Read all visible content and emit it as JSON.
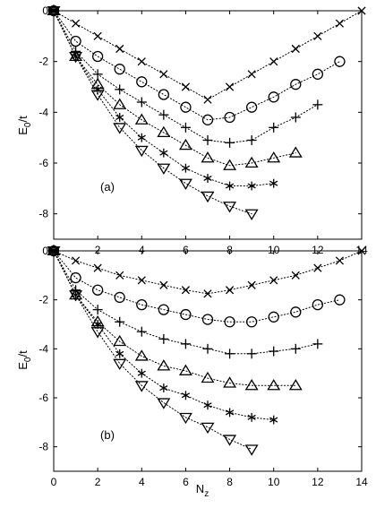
{
  "figure": {
    "xlabel_main": "N",
    "xlabel_sub": "z",
    "ylabel_main": "E",
    "ylabel_sub": "0",
    "ylabel_tail": "/t"
  },
  "chart_data": [
    {
      "type": "scatter",
      "panel_label": "(a)",
      "xlabel": "Nz",
      "ylabel": "E0/t",
      "xlim": [
        0,
        14
      ],
      "ylim": [
        -9,
        0
      ],
      "x_ticks": [
        0,
        2,
        4,
        6,
        8,
        10,
        12,
        14
      ],
      "y_ticks": [
        0,
        -2,
        -4,
        -6,
        -8
      ],
      "x_tick_labels": [
        "0",
        "2",
        "4",
        "6",
        "8",
        "10",
        "12",
        "14"
      ],
      "y_tick_labels": [
        "0",
        "-2",
        "-4",
        "-6",
        "-8"
      ],
      "grid": false,
      "dotted_connecting_lines": true,
      "series": [
        {
          "marker": "x",
          "points": [
            [
              0,
              0
            ],
            [
              1,
              -0.5
            ],
            [
              2,
              -1.0
            ],
            [
              3,
              -1.5
            ],
            [
              4,
              -2.0
            ],
            [
              5,
              -2.5
            ],
            [
              6,
              -3.0
            ],
            [
              7,
              -3.5
            ],
            [
              8,
              -3.0
            ],
            [
              9,
              -2.5
            ],
            [
              10,
              -2.0
            ],
            [
              11,
              -1.5
            ],
            [
              12,
              -1.0
            ],
            [
              13,
              -0.5
            ],
            [
              14,
              0
            ]
          ]
        },
        {
          "marker": "circle",
          "points": [
            [
              0,
              0
            ],
            [
              1,
              -1.2
            ],
            [
              2,
              -1.8
            ],
            [
              3,
              -2.3
            ],
            [
              4,
              -2.8
            ],
            [
              5,
              -3.3
            ],
            [
              6,
              -3.8
            ],
            [
              7,
              -4.3
            ],
            [
              8,
              -4.2
            ],
            [
              9,
              -3.8
            ],
            [
              10,
              -3.4
            ],
            [
              11,
              -2.9
            ],
            [
              12,
              -2.5
            ],
            [
              13,
              -2.0
            ]
          ]
        },
        {
          "marker": "plus",
          "points": [
            [
              0,
              0
            ],
            [
              1,
              -1.6
            ],
            [
              2,
              -2.5
            ],
            [
              3,
              -3.1
            ],
            [
              4,
              -3.6
            ],
            [
              5,
              -4.1
            ],
            [
              6,
              -4.6
            ],
            [
              7,
              -5.1
            ],
            [
              8,
              -5.2
            ],
            [
              9,
              -5.1
            ],
            [
              10,
              -4.6
            ],
            [
              11,
              -4.2
            ],
            [
              12,
              -3.7
            ]
          ]
        },
        {
          "marker": "triangle-up",
          "points": [
            [
              0,
              0
            ],
            [
              1,
              -1.8
            ],
            [
              2,
              -2.9
            ],
            [
              3,
              -3.7
            ],
            [
              4,
              -4.3
            ],
            [
              5,
              -4.8
            ],
            [
              6,
              -5.3
            ],
            [
              7,
              -5.8
            ],
            [
              8,
              -6.1
            ],
            [
              9,
              -6.0
            ],
            [
              10,
              -5.8
            ],
            [
              11,
              -5.6
            ]
          ]
        },
        {
          "marker": "asterisk",
          "points": [
            [
              0,
              0
            ],
            [
              1,
              -1.8
            ],
            [
              2,
              -3.1
            ],
            [
              3,
              -4.2
            ],
            [
              4,
              -5.0
            ],
            [
              5,
              -5.6
            ],
            [
              6,
              -6.2
            ],
            [
              7,
              -6.6
            ],
            [
              8,
              -6.9
            ],
            [
              9,
              -6.9
            ],
            [
              10,
              -6.8
            ]
          ]
        },
        {
          "marker": "triangle-down",
          "points": [
            [
              0,
              0
            ],
            [
              1,
              -1.8
            ],
            [
              2,
              -3.3
            ],
            [
              3,
              -4.6
            ],
            [
              4,
              -5.5
            ],
            [
              5,
              -6.2
            ],
            [
              6,
              -6.8
            ],
            [
              7,
              -7.3
            ],
            [
              8,
              -7.7
            ],
            [
              9,
              -8.0
            ]
          ]
        }
      ]
    },
    {
      "type": "scatter",
      "panel_label": "(b)",
      "xlabel": "Nz",
      "ylabel": "E0/t",
      "xlim": [
        0,
        14
      ],
      "ylim": [
        -9,
        0
      ],
      "x_ticks": [
        0,
        2,
        4,
        6,
        8,
        10,
        12,
        14
      ],
      "y_ticks": [
        0,
        -2,
        -4,
        -6,
        -8
      ],
      "x_tick_labels": [
        "0",
        "2",
        "4",
        "6",
        "8",
        "10",
        "12",
        "14"
      ],
      "y_tick_labels": [
        "0",
        "-2",
        "-4",
        "-6",
        "-8"
      ],
      "grid": false,
      "dotted_connecting_lines": true,
      "series": [
        {
          "marker": "x",
          "points": [
            [
              0,
              0
            ],
            [
              1,
              -0.4
            ],
            [
              2,
              -0.7
            ],
            [
              3,
              -1.0
            ],
            [
              4,
              -1.2
            ],
            [
              5,
              -1.4
            ],
            [
              6,
              -1.6
            ],
            [
              7,
              -1.75
            ],
            [
              8,
              -1.6
            ],
            [
              9,
              -1.4
            ],
            [
              10,
              -1.2
            ],
            [
              11,
              -1.0
            ],
            [
              12,
              -0.7
            ],
            [
              13,
              -0.4
            ],
            [
              14,
              0
            ]
          ]
        },
        {
          "marker": "circle",
          "points": [
            [
              0,
              0
            ],
            [
              1,
              -1.1
            ],
            [
              2,
              -1.6
            ],
            [
              3,
              -1.9
            ],
            [
              4,
              -2.2
            ],
            [
              5,
              -2.4
            ],
            [
              6,
              -2.6
            ],
            [
              7,
              -2.8
            ],
            [
              8,
              -2.9
            ],
            [
              9,
              -2.9
            ],
            [
              10,
              -2.7
            ],
            [
              11,
              -2.5
            ],
            [
              12,
              -2.2
            ],
            [
              13,
              -2.0
            ]
          ]
        },
        {
          "marker": "plus",
          "points": [
            [
              0,
              0
            ],
            [
              1,
              -1.6
            ],
            [
              2,
              -2.4
            ],
            [
              3,
              -2.9
            ],
            [
              4,
              -3.3
            ],
            [
              5,
              -3.6
            ],
            [
              6,
              -3.8
            ],
            [
              7,
              -4.0
            ],
            [
              8,
              -4.2
            ],
            [
              9,
              -4.2
            ],
            [
              10,
              -4.1
            ],
            [
              11,
              -4.0
            ],
            [
              12,
              -3.8
            ]
          ]
        },
        {
          "marker": "triangle-up",
          "points": [
            [
              0,
              0
            ],
            [
              1,
              -1.8
            ],
            [
              2,
              -2.9
            ],
            [
              3,
              -3.7
            ],
            [
              4,
              -4.3
            ],
            [
              5,
              -4.7
            ],
            [
              6,
              -4.9
            ],
            [
              7,
              -5.2
            ],
            [
              8,
              -5.4
            ],
            [
              9,
              -5.5
            ],
            [
              10,
              -5.5
            ],
            [
              11,
              -5.5
            ]
          ]
        },
        {
          "marker": "asterisk",
          "points": [
            [
              0,
              0
            ],
            [
              1,
              -1.8
            ],
            [
              2,
              -3.0
            ],
            [
              3,
              -4.2
            ],
            [
              4,
              -5.0
            ],
            [
              5,
              -5.6
            ],
            [
              6,
              -5.9
            ],
            [
              7,
              -6.3
            ],
            [
              8,
              -6.6
            ],
            [
              9,
              -6.8
            ],
            [
              10,
              -6.9
            ]
          ]
        },
        {
          "marker": "triangle-down",
          "points": [
            [
              0,
              0
            ],
            [
              1,
              -1.8
            ],
            [
              2,
              -3.3
            ],
            [
              3,
              -4.6
            ],
            [
              4,
              -5.5
            ],
            [
              5,
              -6.2
            ],
            [
              6,
              -6.8
            ],
            [
              7,
              -7.2
            ],
            [
              8,
              -7.7
            ],
            [
              9,
              -8.1
            ]
          ]
        }
      ]
    }
  ]
}
